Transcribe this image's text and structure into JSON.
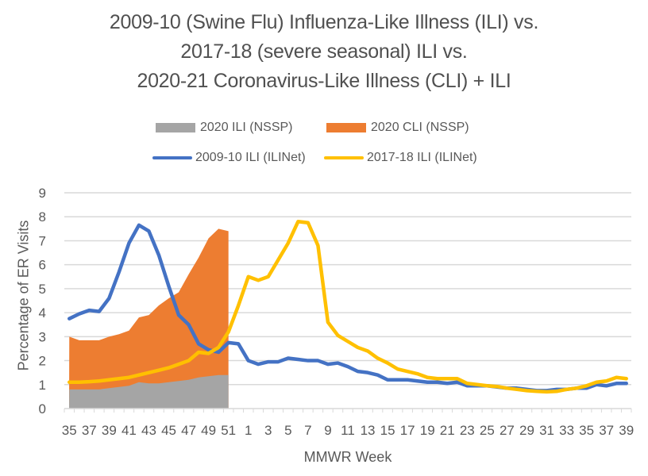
{
  "chart_data": {
    "type": "line",
    "title": [
      "2009-10 (Swine Flu) Influenza-Like Illness (ILI) vs.",
      "2017-18 (severe seasonal) ILI vs.",
      "2020-21 Coronavirus-Like Illness (CLI) + ILI"
    ],
    "xlabel": "MMWR Week",
    "ylabel": "Percentage of ER Visits",
    "ylim": [
      0,
      9
    ],
    "yticks": [
      "0",
      "1",
      "2",
      "3",
      "4",
      "5",
      "6",
      "7",
      "8",
      "9"
    ],
    "grid": true,
    "legend_position": "top",
    "x": [
      35,
      36,
      37,
      38,
      39,
      40,
      41,
      42,
      43,
      44,
      45,
      46,
      47,
      48,
      49,
      50,
      51,
      52,
      1,
      2,
      3,
      4,
      5,
      6,
      7,
      8,
      9,
      10,
      11,
      12,
      13,
      14,
      15,
      16,
      17,
      18,
      19,
      20,
      21,
      22,
      23,
      24,
      25,
      26,
      27,
      28,
      29,
      30,
      31,
      32,
      33,
      34,
      35,
      36,
      37,
      38,
      39
    ],
    "xtick_labels": [
      "35",
      "37",
      "39",
      "41",
      "43",
      "45",
      "47",
      "49",
      "51",
      "1",
      "3",
      "5",
      "7",
      "9",
      "11",
      "13",
      "15",
      "17",
      "19",
      "21",
      "23",
      "25",
      "27",
      "29",
      "31",
      "33",
      "35",
      "37",
      "39"
    ],
    "series": [
      {
        "name": "2020 ILI (NSSP)",
        "kind": "area",
        "color": "#a5a5a5",
        "values": [
          0.8,
          0.8,
          0.8,
          0.8,
          0.85,
          0.9,
          0.95,
          1.1,
          1.05,
          1.05,
          1.1,
          1.15,
          1.2,
          1.3,
          1.35,
          1.4,
          1.4
        ]
      },
      {
        "name": "2020 CLI (NSSP)",
        "kind": "area",
        "color": "#ed7d31",
        "values": [
          3.0,
          2.85,
          2.85,
          2.85,
          3.0,
          3.1,
          3.25,
          3.8,
          3.9,
          4.3,
          4.6,
          4.85,
          5.6,
          6.3,
          7.1,
          7.5,
          7.4
        ]
      },
      {
        "name": "2009-10 ILI (ILINet)",
        "kind": "line",
        "color": "#4472c4",
        "values": [
          3.75,
          3.95,
          4.1,
          4.05,
          4.6,
          5.7,
          6.9,
          7.65,
          7.4,
          6.4,
          5.1,
          3.9,
          3.5,
          2.7,
          2.45,
          2.35,
          2.75,
          2.7,
          2.0,
          1.85,
          1.95,
          1.95,
          2.1,
          2.05,
          2.0,
          2.0,
          1.85,
          1.9,
          1.75,
          1.55,
          1.5,
          1.4,
          1.2,
          1.2,
          1.2,
          1.15,
          1.1,
          1.1,
          1.05,
          1.1,
          0.95,
          0.95,
          0.95,
          0.9,
          0.85,
          0.85,
          0.8,
          0.75,
          0.75,
          0.8,
          0.8,
          0.85,
          0.85,
          1.0,
          0.95,
          1.05,
          1.05
        ]
      },
      {
        "name": "2017-18 ILI (ILINet)",
        "kind": "line",
        "color": "#ffc000",
        "values": [
          1.1,
          1.1,
          1.12,
          1.15,
          1.2,
          1.25,
          1.3,
          1.4,
          1.5,
          1.6,
          1.7,
          1.85,
          2.0,
          2.35,
          2.3,
          2.55,
          3.2,
          4.3,
          5.5,
          5.35,
          5.5,
          6.2,
          6.9,
          7.8,
          7.75,
          6.8,
          3.6,
          3.05,
          2.8,
          2.55,
          2.4,
          2.1,
          1.9,
          1.65,
          1.55,
          1.45,
          1.3,
          1.25,
          1.25,
          1.25,
          1.05,
          1.0,
          0.95,
          0.92,
          0.85,
          0.8,
          0.75,
          0.72,
          0.7,
          0.72,
          0.8,
          0.85,
          0.95,
          1.1,
          1.15,
          1.3,
          1.25
        ]
      }
    ]
  }
}
